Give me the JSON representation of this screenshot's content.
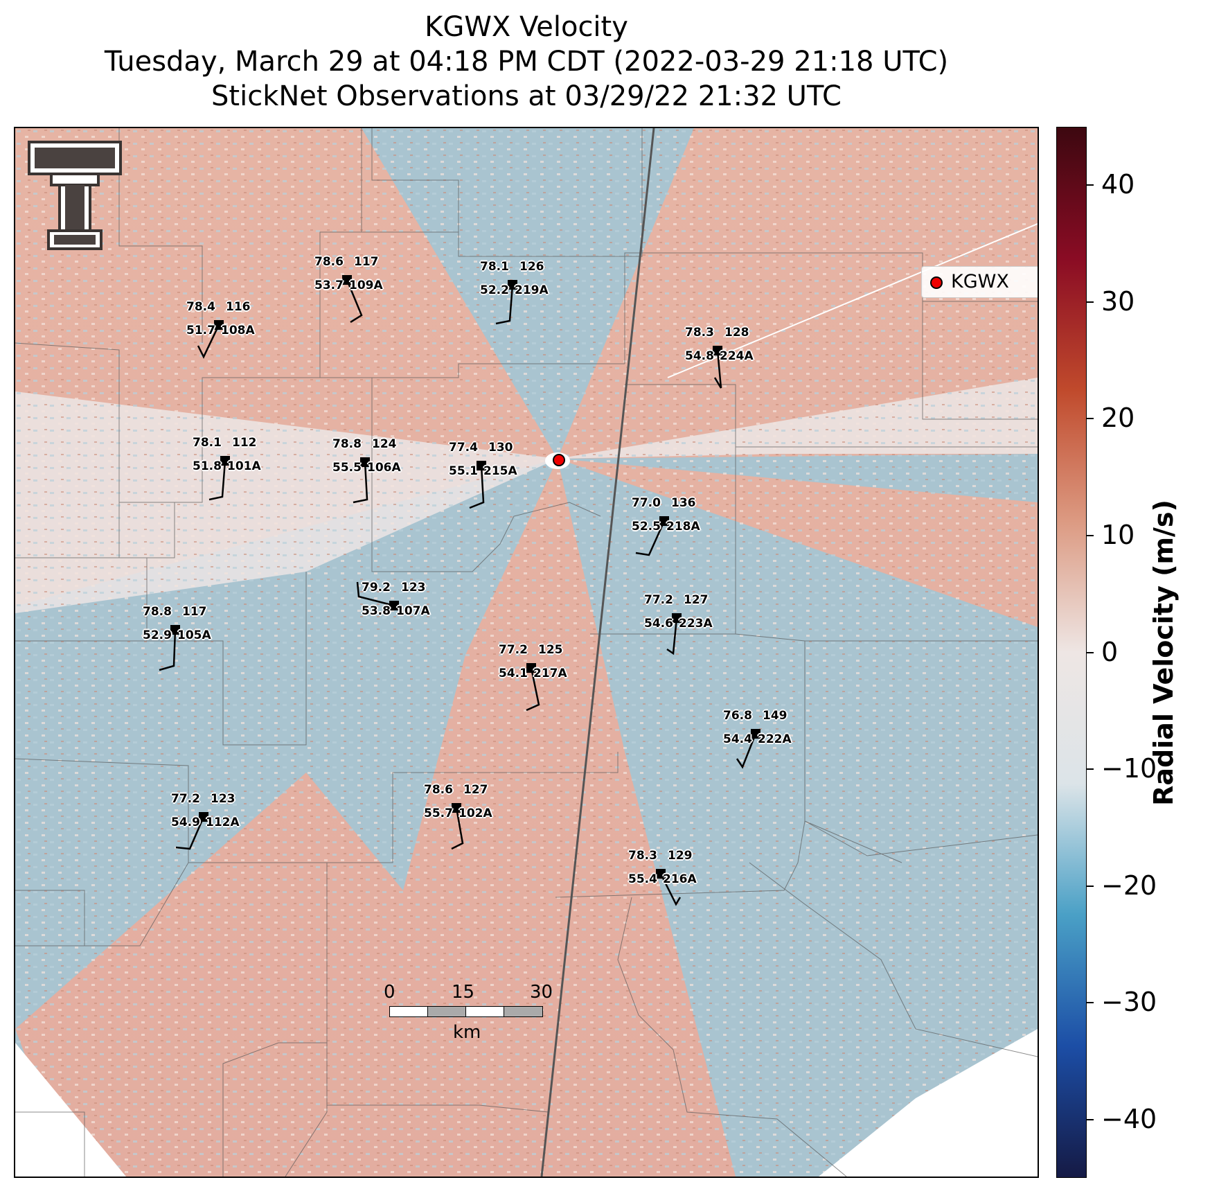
{
  "title": {
    "line1": "KGWX Velocity",
    "line2": "Tuesday, March 29 at 04:18 PM CDT (2022-03-29 21:18 UTC)",
    "line3": "StickNet Observations at 03/29/22 21:32 UTC"
  },
  "legend": {
    "label": "KGWX",
    "marker_color": "#e00000"
  },
  "colorbar": {
    "label": "Radial Velocity (m/s)",
    "range": [
      -45,
      45
    ],
    "ticks": [
      "40",
      "30",
      "20",
      "10",
      "0",
      "−10",
      "−20",
      "−30",
      "−40"
    ],
    "colors": [
      "#151a45",
      "#1c4ea6",
      "#4aa0c6",
      "#dce4e8",
      "#eee6e4",
      "#dc9a82",
      "#c04a2c",
      "#8a0c24",
      "#3d0810"
    ]
  },
  "scale_bar": {
    "ticks": [
      "0",
      "15",
      "30"
    ],
    "unit": "km"
  },
  "stations": [
    {
      "id": "109A",
      "temp": "78.6",
      "dew": "53.7",
      "pressure": "117"
    },
    {
      "id": "219A",
      "temp": "78.1",
      "dew": "52.2",
      "pressure": "126"
    },
    {
      "id": "108A",
      "temp": "78.4",
      "dew": "51.7",
      "pressure": "116"
    },
    {
      "id": "224A",
      "temp": "78.3",
      "dew": "54.8",
      "pressure": "128"
    },
    {
      "id": "101A",
      "temp": "78.1",
      "dew": "51.8",
      "pressure": "112"
    },
    {
      "id": "106A",
      "temp": "78.8",
      "dew": "55.5",
      "pressure": "124"
    },
    {
      "id": "215A",
      "temp": "77.4",
      "dew": "55.1",
      "pressure": "130"
    },
    {
      "id": "218A",
      "temp": "77.0",
      "dew": "52.5",
      "pressure": "136"
    },
    {
      "id": "107A",
      "temp": "79.2",
      "dew": "53.8",
      "pressure": "123"
    },
    {
      "id": "105A",
      "temp": "78.8",
      "dew": "52.9",
      "pressure": "117"
    },
    {
      "id": "223A",
      "temp": "77.2",
      "dew": "54.6",
      "pressure": "127"
    },
    {
      "id": "217A",
      "temp": "77.2",
      "dew": "54.1",
      "pressure": "125"
    },
    {
      "id": "222A",
      "temp": "76.8",
      "dew": "54.4",
      "pressure": "149"
    },
    {
      "id": "112A",
      "temp": "77.2",
      "dew": "54.9",
      "pressure": "123"
    },
    {
      "id": "102A",
      "temp": "78.6",
      "dew": "55.7",
      "pressure": "127"
    },
    {
      "id": "216A",
      "temp": "78.3",
      "dew": "55.4",
      "pressure": "129"
    }
  ],
  "map_colors": {
    "inbound": "#9fbfcc",
    "outbound": "#dda08e",
    "neutral": "#ece8e8"
  },
  "logo": "texas-tech-double-t"
}
